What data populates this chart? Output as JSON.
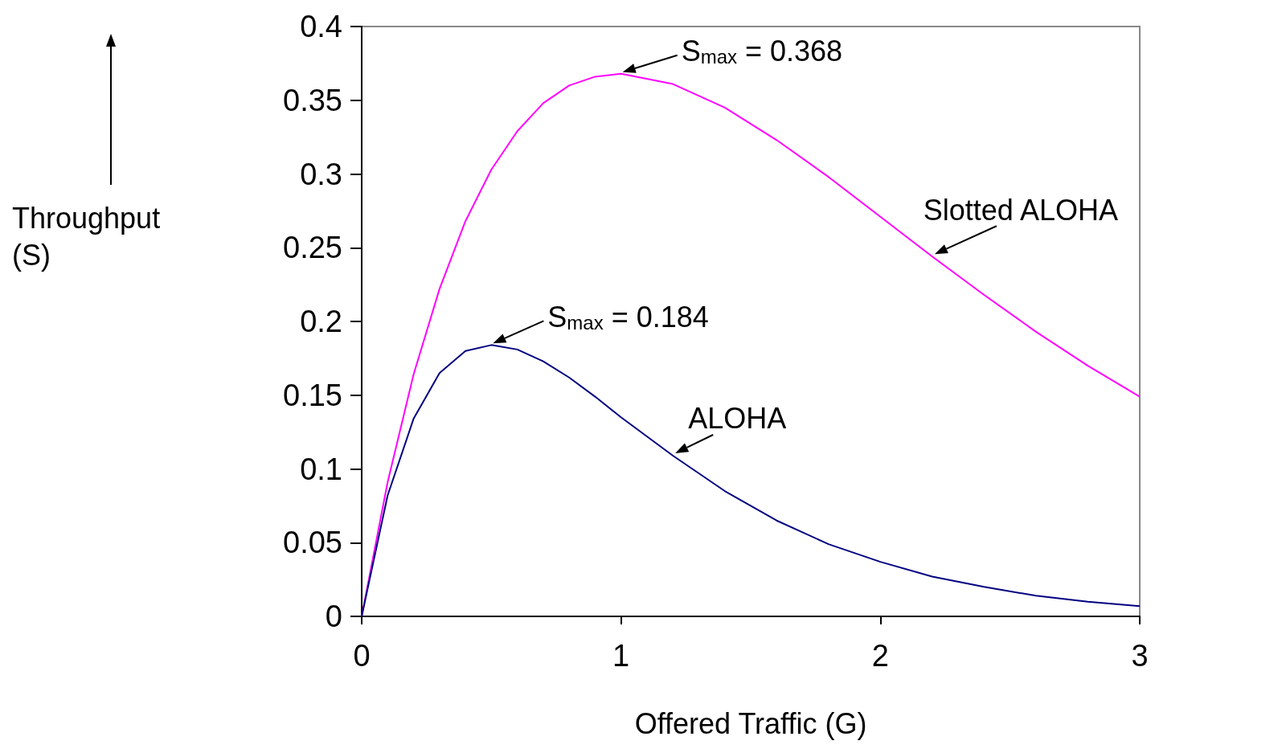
{
  "chart_data": {
    "type": "line",
    "xlabel": "Offered Traffic (G)",
    "ylabel": "Throughput (S)",
    "xlim": [
      0,
      3
    ],
    "xticks": [
      0,
      1,
      2,
      3
    ],
    "ylim": [
      0,
      0.4
    ],
    "yticks": [
      0,
      0.05,
      0.1,
      0.15,
      0.2,
      0.25,
      0.3,
      0.35,
      0.4
    ],
    "grid": false,
    "legend": false,
    "marker": "none",
    "line_style": "solid",
    "x": [
      0,
      0.1,
      0.2,
      0.3,
      0.4,
      0.5,
      0.6,
      0.7,
      0.8,
      0.9,
      1.0,
      1.2,
      1.4,
      1.6,
      1.8,
      2.0,
      2.2,
      2.4,
      2.6,
      2.8,
      3.0
    ],
    "series": [
      {
        "name": "Slotted ALOHA",
        "color": "#ff00ff",
        "values": [
          0,
          0.091,
          0.164,
          0.222,
          0.268,
          0.303,
          0.329,
          0.348,
          0.36,
          0.366,
          0.368,
          0.361,
          0.345,
          0.323,
          0.298,
          0.271,
          0.244,
          0.218,
          0.193,
          0.17,
          0.149
        ]
      },
      {
        "name": "ALOHA",
        "color": "#000080",
        "values": [
          0,
          0.082,
          0.134,
          0.165,
          0.18,
          0.184,
          0.181,
          0.173,
          0.162,
          0.149,
          0.135,
          0.109,
          0.085,
          0.065,
          0.049,
          0.037,
          0.027,
          0.02,
          0.014,
          0.01,
          0.007
        ]
      }
    ],
    "annotations": [
      {
        "text": "S$_{max}$ = 0.368",
        "x": 1,
        "y": 0.368
      },
      {
        "text": "S$_{max}$ = 0.184",
        "x": 0.5,
        "y": 0.184
      }
    ]
  }
}
